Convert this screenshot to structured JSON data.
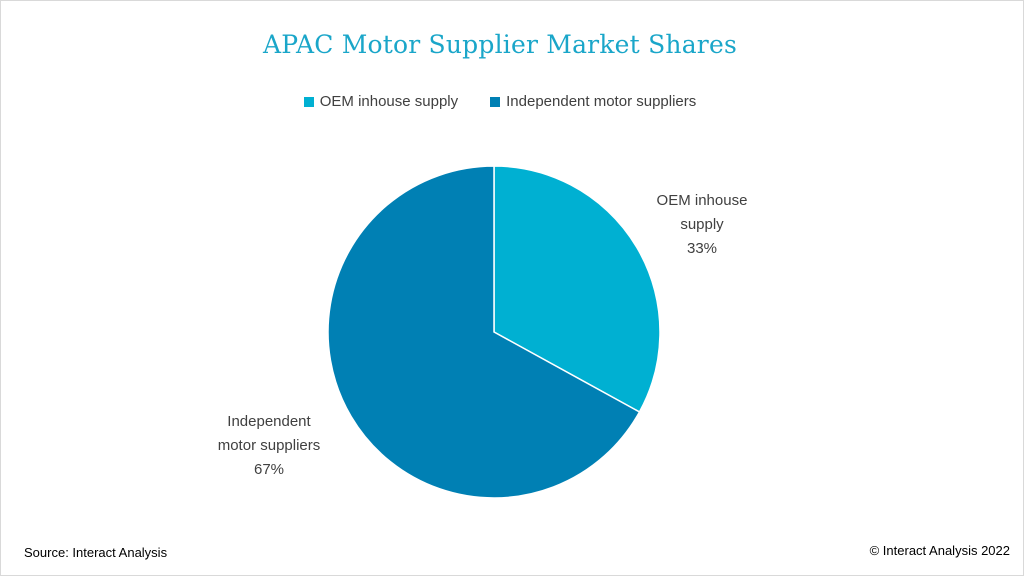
{
  "chart_data": {
    "type": "pie",
    "title": "APAC Motor Supplier Market Shares",
    "slices": [
      {
        "name": "OEM inhouse supply",
        "label_lines": [
          "OEM inhouse",
          "supply"
        ],
        "percent_label": "33%",
        "value": 33,
        "color": "#00b0d2"
      },
      {
        "name": "Independent motor suppliers",
        "label_lines": [
          "Independent",
          "motor suppliers"
        ],
        "percent_label": "67%",
        "value": 67,
        "color": "#0080b4"
      }
    ],
    "legend": {
      "position": "top",
      "entries": [
        "OEM inhouse supply",
        "Independent motor suppliers"
      ]
    },
    "start_angle": "12 o'clock",
    "direction": "clockwise"
  },
  "footer": {
    "source": "Source: Interact Analysis",
    "copyright": "© Interact Analysis 2022"
  },
  "colors": {
    "title": "#1aa6c9",
    "text": "#404040",
    "separator": "#ffffff"
  }
}
